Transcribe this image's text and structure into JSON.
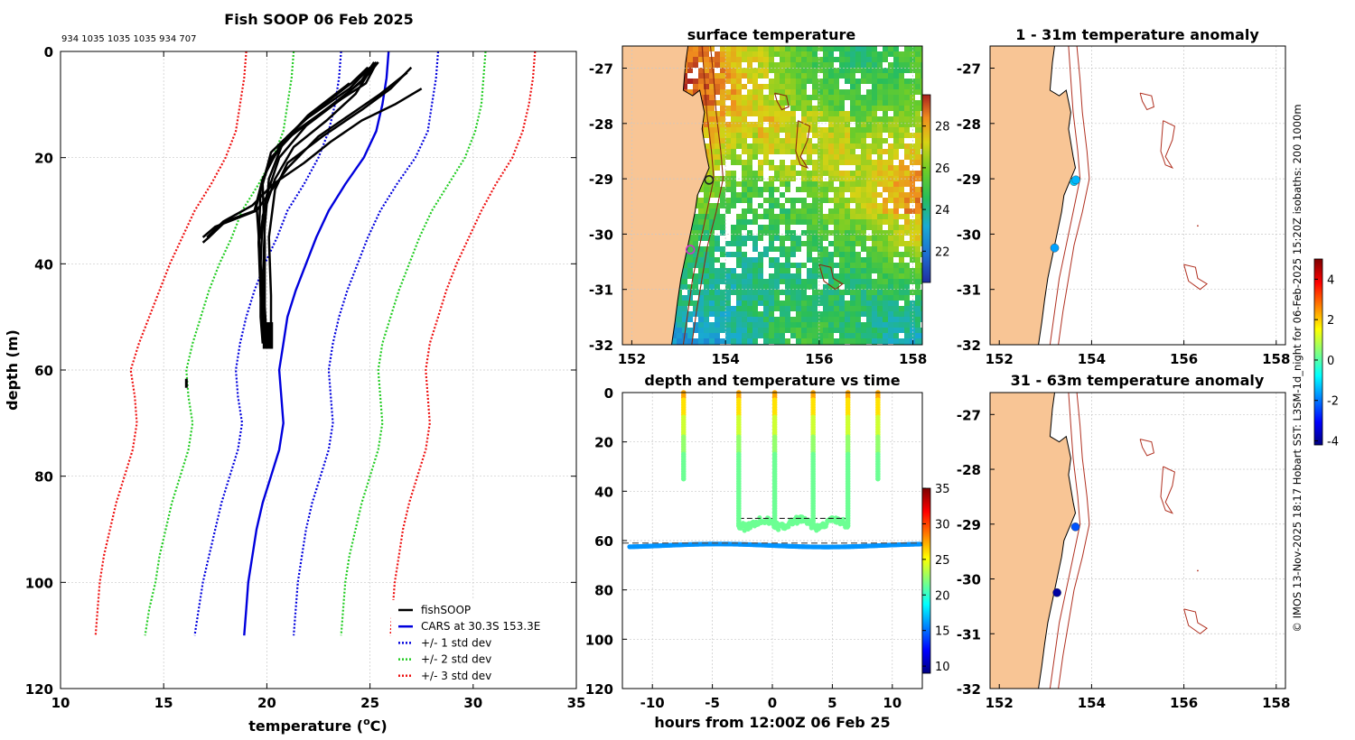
{
  "chart_data": [
    {
      "panel": "profile",
      "type": "line",
      "title": "Fish SOOP 06 Feb 2025",
      "subtitle": "934 1035 1035 1035 934 707",
      "xlabel_main": "temperature (",
      "xlabel_sup": "o",
      "xlabel_end": "C)",
      "ylabel": "depth (m)",
      "xlim": [
        10,
        35
      ],
      "ylim": [
        0,
        120
      ],
      "xticks": [
        "10",
        "15",
        "20",
        "25",
        "30",
        "35"
      ],
      "yticks": [
        "0",
        "20",
        "40",
        "60",
        "80",
        "100",
        "120"
      ],
      "depth": [
        0,
        5,
        10,
        15,
        20,
        25,
        30,
        35,
        40,
        45,
        50,
        55,
        60,
        65,
        70,
        75,
        80,
        85,
        90,
        95,
        100,
        105,
        110
      ],
      "series": [
        {
          "name": "CARS mean",
          "color": "#0000dd",
          "dash": "",
          "temps": [
            25.9,
            25.8,
            25.6,
            25.3,
            24.7,
            23.8,
            23.0,
            22.4,
            21.9,
            21.4,
            21.0,
            20.8,
            20.6,
            20.7,
            20.8,
            20.6,
            20.2,
            19.8,
            19.5,
            19.3,
            19.1,
            19.0,
            18.9
          ]
        },
        {
          "name": "-1sd",
          "color": "#0000dd",
          "dash": "2,2",
          "temps": [
            23.6,
            23.5,
            23.3,
            23.0,
            22.5,
            21.8,
            21.0,
            20.5,
            19.9,
            19.4,
            19.0,
            18.7,
            18.5,
            18.6,
            18.8,
            18.6,
            18.2,
            17.8,
            17.5,
            17.2,
            16.9,
            16.7,
            16.5
          ]
        },
        {
          "name": "+1sd",
          "color": "#0000dd",
          "dash": "2,2",
          "temps": [
            28.3,
            28.2,
            28.0,
            27.8,
            27.2,
            26.3,
            25.5,
            24.9,
            24.4,
            23.9,
            23.5,
            23.2,
            23.0,
            23.1,
            23.2,
            23.0,
            22.6,
            22.2,
            21.9,
            21.7,
            21.5,
            21.4,
            21.3
          ]
        },
        {
          "name": "-2sd",
          "color": "#22cc22",
          "dash": "2,2",
          "temps": [
            21.3,
            21.2,
            21.0,
            20.8,
            20.3,
            19.6,
            18.8,
            18.3,
            17.7,
            17.2,
            16.8,
            16.4,
            16.1,
            16.2,
            16.4,
            16.2,
            15.8,
            15.4,
            15.1,
            14.8,
            14.6,
            14.3,
            14.1
          ]
        },
        {
          "name": "+2sd",
          "color": "#22cc22",
          "dash": "2,2",
          "temps": [
            30.6,
            30.5,
            30.4,
            30.1,
            29.6,
            28.8,
            28.0,
            27.4,
            26.9,
            26.4,
            26.0,
            25.6,
            25.4,
            25.5,
            25.6,
            25.4,
            25.0,
            24.6,
            24.3,
            24.0,
            23.8,
            23.7,
            23.6
          ]
        },
        {
          "name": "-3sd",
          "color": "#ee1111",
          "dash": "2,2",
          "temps": [
            19.0,
            18.9,
            18.7,
            18.5,
            18.0,
            17.3,
            16.5,
            15.9,
            15.3,
            14.8,
            14.3,
            13.8,
            13.4,
            13.6,
            13.7,
            13.5,
            13.1,
            12.7,
            12.4,
            12.1,
            11.9,
            11.8,
            11.7
          ]
        },
        {
          "name": "+3sd",
          "color": "#ee1111",
          "dash": "2,2",
          "temps": [
            33.0,
            32.9,
            32.7,
            32.4,
            31.9,
            31.1,
            30.4,
            29.8,
            29.2,
            28.7,
            28.3,
            27.9,
            27.7,
            27.8,
            27.9,
            27.7,
            27.3,
            26.9,
            26.6,
            26.4,
            26.2,
            26.1,
            26.0
          ]
        }
      ],
      "fish_profiles": [
        [
          [
            25.3,
            2
          ],
          [
            25.1,
            3
          ],
          [
            24.3,
            8
          ],
          [
            22.9,
            13
          ],
          [
            21.3,
            18
          ],
          [
            20.4,
            24
          ],
          [
            19.8,
            31
          ],
          [
            19.7,
            40
          ],
          [
            19.7,
            50
          ],
          [
            19.8,
            55
          ]
        ],
        [
          [
            25.2,
            2
          ],
          [
            24.5,
            6
          ],
          [
            22.5,
            12
          ],
          [
            20.8,
            17
          ],
          [
            20.1,
            24
          ],
          [
            19.9,
            33
          ],
          [
            19.8,
            44
          ],
          [
            19.8,
            54
          ]
        ],
        [
          [
            25.0,
            3
          ],
          [
            24.0,
            7
          ],
          [
            21.8,
            13
          ],
          [
            20.2,
            19
          ],
          [
            19.8,
            25
          ],
          [
            19.9,
            36
          ],
          [
            19.9,
            48
          ],
          [
            20.0,
            55
          ]
        ],
        [
          [
            25.4,
            2
          ],
          [
            25.0,
            4
          ],
          [
            23.6,
            9
          ],
          [
            21.9,
            14
          ],
          [
            20.6,
            20
          ],
          [
            20.0,
            27
          ],
          [
            19.6,
            36
          ],
          [
            19.7,
            46
          ],
          [
            19.9,
            53
          ]
        ],
        [
          [
            27.0,
            3
          ],
          [
            26.0,
            7
          ],
          [
            24.6,
            11
          ],
          [
            22.7,
            16
          ],
          [
            21.0,
            21
          ],
          [
            20.4,
            26
          ],
          [
            20.1,
            35
          ],
          [
            20.2,
            46
          ],
          [
            20.2,
            56
          ]
        ],
        [
          [
            26.8,
            4
          ],
          [
            25.5,
            8
          ],
          [
            24.0,
            12
          ],
          [
            22.5,
            16
          ],
          [
            21.0,
            22
          ],
          [
            19.5,
            30
          ],
          [
            17.5,
            33
          ],
          [
            16.9,
            35
          ]
        ],
        [
          [
            27.5,
            7
          ],
          [
            26.2,
            10
          ],
          [
            24.6,
            13
          ],
          [
            23.1,
            17
          ],
          [
            21.8,
            21
          ],
          [
            20.3,
            25
          ],
          [
            19.3,
            29
          ],
          [
            17.9,
            32
          ],
          [
            17.1,
            35
          ]
        ],
        [
          [
            25.2,
            3
          ],
          [
            24.8,
            6
          ],
          [
            23.2,
            10
          ],
          [
            21.4,
            15
          ],
          [
            20.2,
            20
          ],
          [
            19.7,
            26
          ],
          [
            19.6,
            36
          ],
          [
            19.8,
            47
          ],
          [
            20.0,
            55
          ]
        ],
        [
          [
            24.9,
            3
          ],
          [
            24.1,
            6
          ],
          [
            22.4,
            11
          ],
          [
            21.0,
            16
          ],
          [
            20.0,
            22
          ],
          [
            19.5,
            29
          ],
          [
            19.7,
            40
          ],
          [
            19.9,
            52
          ]
        ],
        [
          [
            24.0,
            6
          ],
          [
            22.0,
            12
          ],
          [
            20.6,
            18
          ],
          [
            19.8,
            24
          ],
          [
            19.4,
            30
          ],
          [
            18.0,
            32
          ],
          [
            17.2,
            35
          ],
          [
            16.9,
            36
          ]
        ]
      ],
      "fish_cluster": {
        "temp_range": [
          19.8,
          20.3
        ],
        "depth_range": [
          51,
          56
        ]
      },
      "fish_dot": {
        "temp": 16.1,
        "depth": 62.5
      },
      "legend": [
        {
          "label": "fishSOOP",
          "color": "#000000",
          "dash": ""
        },
        {
          "label": "CARS at 30.3S 153.3E",
          "color": "#0000dd",
          "dash": ""
        },
        {
          "label": "+/- 1 std dev",
          "color": "#0000dd",
          "dash": "2,2"
        },
        {
          "label": "+/- 2 std dev",
          "color": "#22cc22",
          "dash": "2,2"
        },
        {
          "label": "+/- 3 std dev",
          "color": "#ee1111",
          "dash": "2,2"
        }
      ]
    },
    {
      "panel": "sst_map",
      "type": "heatmap",
      "title": "surface temperature",
      "xlim": [
        151.8,
        158.2
      ],
      "ylim": [
        -32,
        -26.6
      ],
      "xticks": [
        "152",
        "154",
        "156",
        "158"
      ],
      "yticks": [
        "-27",
        "-28",
        "-29",
        "-30",
        "-31",
        "-32"
      ],
      "colorbar": {
        "min": 20.5,
        "max": 29.5,
        "ticks": [
          "22",
          "24",
          "26",
          "28"
        ]
      },
      "markers": [
        {
          "lon": 153.65,
          "lat": -29.02,
          "color": "#222222"
        },
        {
          "lon": 153.25,
          "lat": -30.28,
          "color": "#cc33cc"
        }
      ]
    },
    {
      "panel": "depth_time",
      "type": "scatter",
      "title": "depth and temperature vs time",
      "xlabel": "hours from 12:00Z 06 Feb 25",
      "xlim": [
        -12.5,
        12.5
      ],
      "ylim": [
        0,
        120
      ],
      "xticks": [
        "-10",
        "-5",
        "0",
        "5",
        "10"
      ],
      "yticks": [
        "0",
        "20",
        "40",
        "60",
        "80",
        "100",
        "120"
      ],
      "ref_depths": [
        51,
        61
      ],
      "colorbar": {
        "min": 9,
        "max": 35,
        "ticks": [
          "10",
          "15",
          "20",
          "25",
          "30",
          "35"
        ]
      },
      "profile_times": [
        -7.4,
        -2.8,
        0.2,
        3.4,
        6.3,
        8.8
      ],
      "profile_max_depth": [
        35,
        54,
        53,
        54,
        54,
        35
      ],
      "bottom_line": {
        "depth": 62,
        "temp": 16
      }
    },
    {
      "panel": "anomaly_shallow",
      "type": "scatter",
      "title": "1 - 31m temperature anomaly",
      "xlim": [
        151.8,
        158.2
      ],
      "ylim": [
        -32,
        -26.6
      ],
      "xticks": [
        "152",
        "154",
        "156",
        "158"
      ],
      "yticks": [
        "-27",
        "-28",
        "-29",
        "-30",
        "-31",
        "-32"
      ],
      "points": [
        {
          "lon": 153.62,
          "lat": -29.05,
          "anomaly": -1.2
        },
        {
          "lon": 153.66,
          "lat": -29.02,
          "anomaly": -1.4
        },
        {
          "lon": 153.2,
          "lat": -30.25,
          "anomaly": -1.6
        }
      ]
    },
    {
      "panel": "anomaly_deep",
      "type": "scatter",
      "title": "31 - 63m temperature anomaly",
      "xlim": [
        151.8,
        158.2
      ],
      "ylim": [
        -32,
        -26.6
      ],
      "xticks": [
        "152",
        "154",
        "156",
        "158"
      ],
      "yticks": [
        "-27",
        "-28",
        "-29",
        "-30",
        "-31",
        "-32"
      ],
      "points": [
        {
          "lon": 153.65,
          "lat": -29.05,
          "anomaly": -2.3
        },
        {
          "lon": 153.25,
          "lat": -30.25,
          "anomaly": -3.9
        }
      ],
      "colorbar": {
        "min": -4.2,
        "max": 5.0,
        "ticks": [
          "-4",
          "-2",
          "0",
          "2",
          "4"
        ]
      }
    }
  ],
  "credit": "© IMOS 13-Nov-2025 18:17 Hobart SST: L3SM-1d_night for 06-Feb-2025 15:20Z isobaths: 200  1000m",
  "colors": {
    "land": "#f8c595",
    "isobath": "#b03020"
  }
}
